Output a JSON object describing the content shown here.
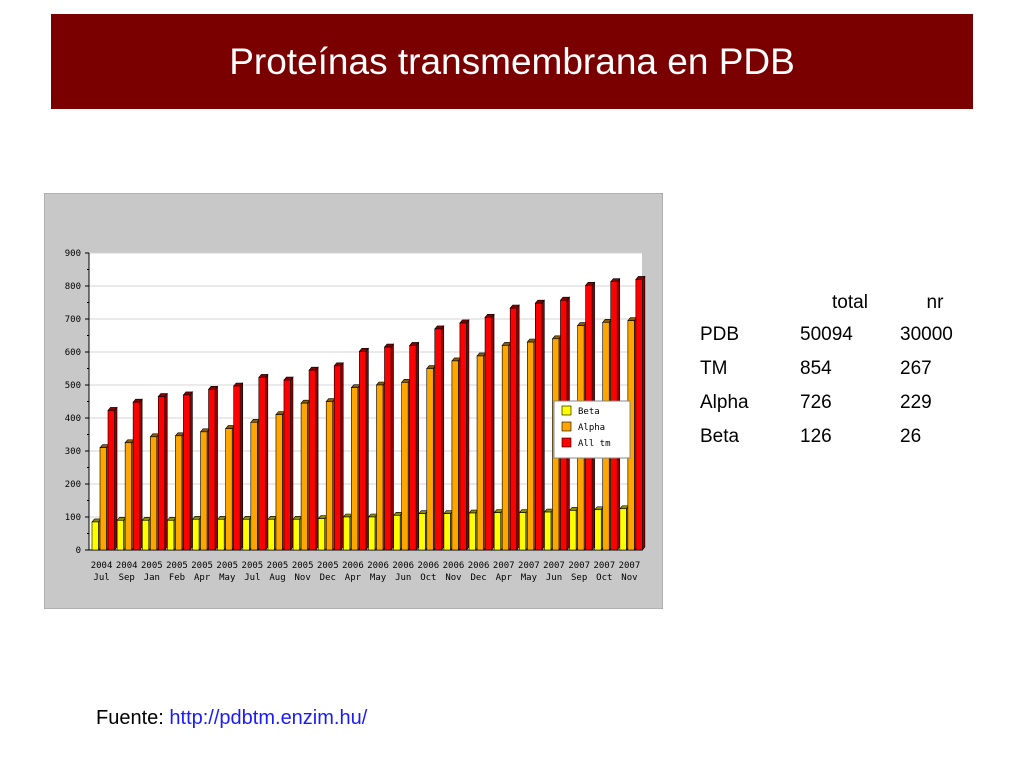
{
  "slide": {
    "title": "Proteínas transmembrana en PDB"
  },
  "table": {
    "header": [
      "",
      "total",
      "nr"
    ],
    "rows": [
      [
        "PDB",
        "50094",
        "30000"
      ],
      [
        "TM",
        "854",
        "267"
      ],
      [
        "Alpha",
        "726",
        "229"
      ],
      [
        "Beta",
        "126",
        "26"
      ]
    ]
  },
  "source": {
    "label": "Fuente:",
    "url": "http://pdbtm.enzim.hu/"
  },
  "chart_data": {
    "type": "bar",
    "categories": [
      [
        "2004",
        "Jul"
      ],
      [
        "2004",
        "Sep"
      ],
      [
        "2005",
        "Jan"
      ],
      [
        "2005",
        "Feb"
      ],
      [
        "2005",
        "Apr"
      ],
      [
        "2005",
        "May"
      ],
      [
        "2005",
        "Jul"
      ],
      [
        "2005",
        "Aug"
      ],
      [
        "2005",
        "Nov"
      ],
      [
        "2005",
        "Dec"
      ],
      [
        "2006",
        "Apr"
      ],
      [
        "2006",
        "May"
      ],
      [
        "2006",
        "Jun"
      ],
      [
        "2006",
        "Oct"
      ],
      [
        "2006",
        "Nov"
      ],
      [
        "2006",
        "Dec"
      ],
      [
        "2007",
        "Apr"
      ],
      [
        "2007",
        "May"
      ],
      [
        "2007",
        "Jun"
      ],
      [
        "2007",
        "Sep"
      ],
      [
        "2007",
        "Oct"
      ],
      [
        "2007",
        "Nov"
      ]
    ],
    "series": [
      {
        "name": "Beta",
        "color": "#ffff00",
        "values": [
          85,
          90,
          90,
          90,
          93,
          93,
          93,
          93,
          93,
          95,
          100,
          100,
          105,
          110,
          110,
          112,
          113,
          113,
          115,
          120,
          122,
          125
        ]
      },
      {
        "name": "Alpha",
        "color": "#ffa500",
        "values": [
          310,
          325,
          343,
          346,
          358,
          368,
          387,
          410,
          445,
          450,
          492,
          500,
          508,
          550,
          573,
          588,
          620,
          630,
          640,
          680,
          690,
          695
        ]
      },
      {
        "name": "All tm",
        "color": "#ff0000",
        "values": [
          423,
          448,
          465,
          470,
          487,
          497,
          523,
          515,
          545,
          558,
          602,
          615,
          620,
          670,
          688,
          705,
          733,
          748,
          757,
          802,
          813,
          820
        ]
      }
    ],
    "ylim": [
      0,
      900
    ],
    "yticks": [
      0,
      100,
      200,
      300,
      400,
      500,
      600,
      700,
      800,
      900
    ],
    "legend": "right",
    "grid": true
  }
}
